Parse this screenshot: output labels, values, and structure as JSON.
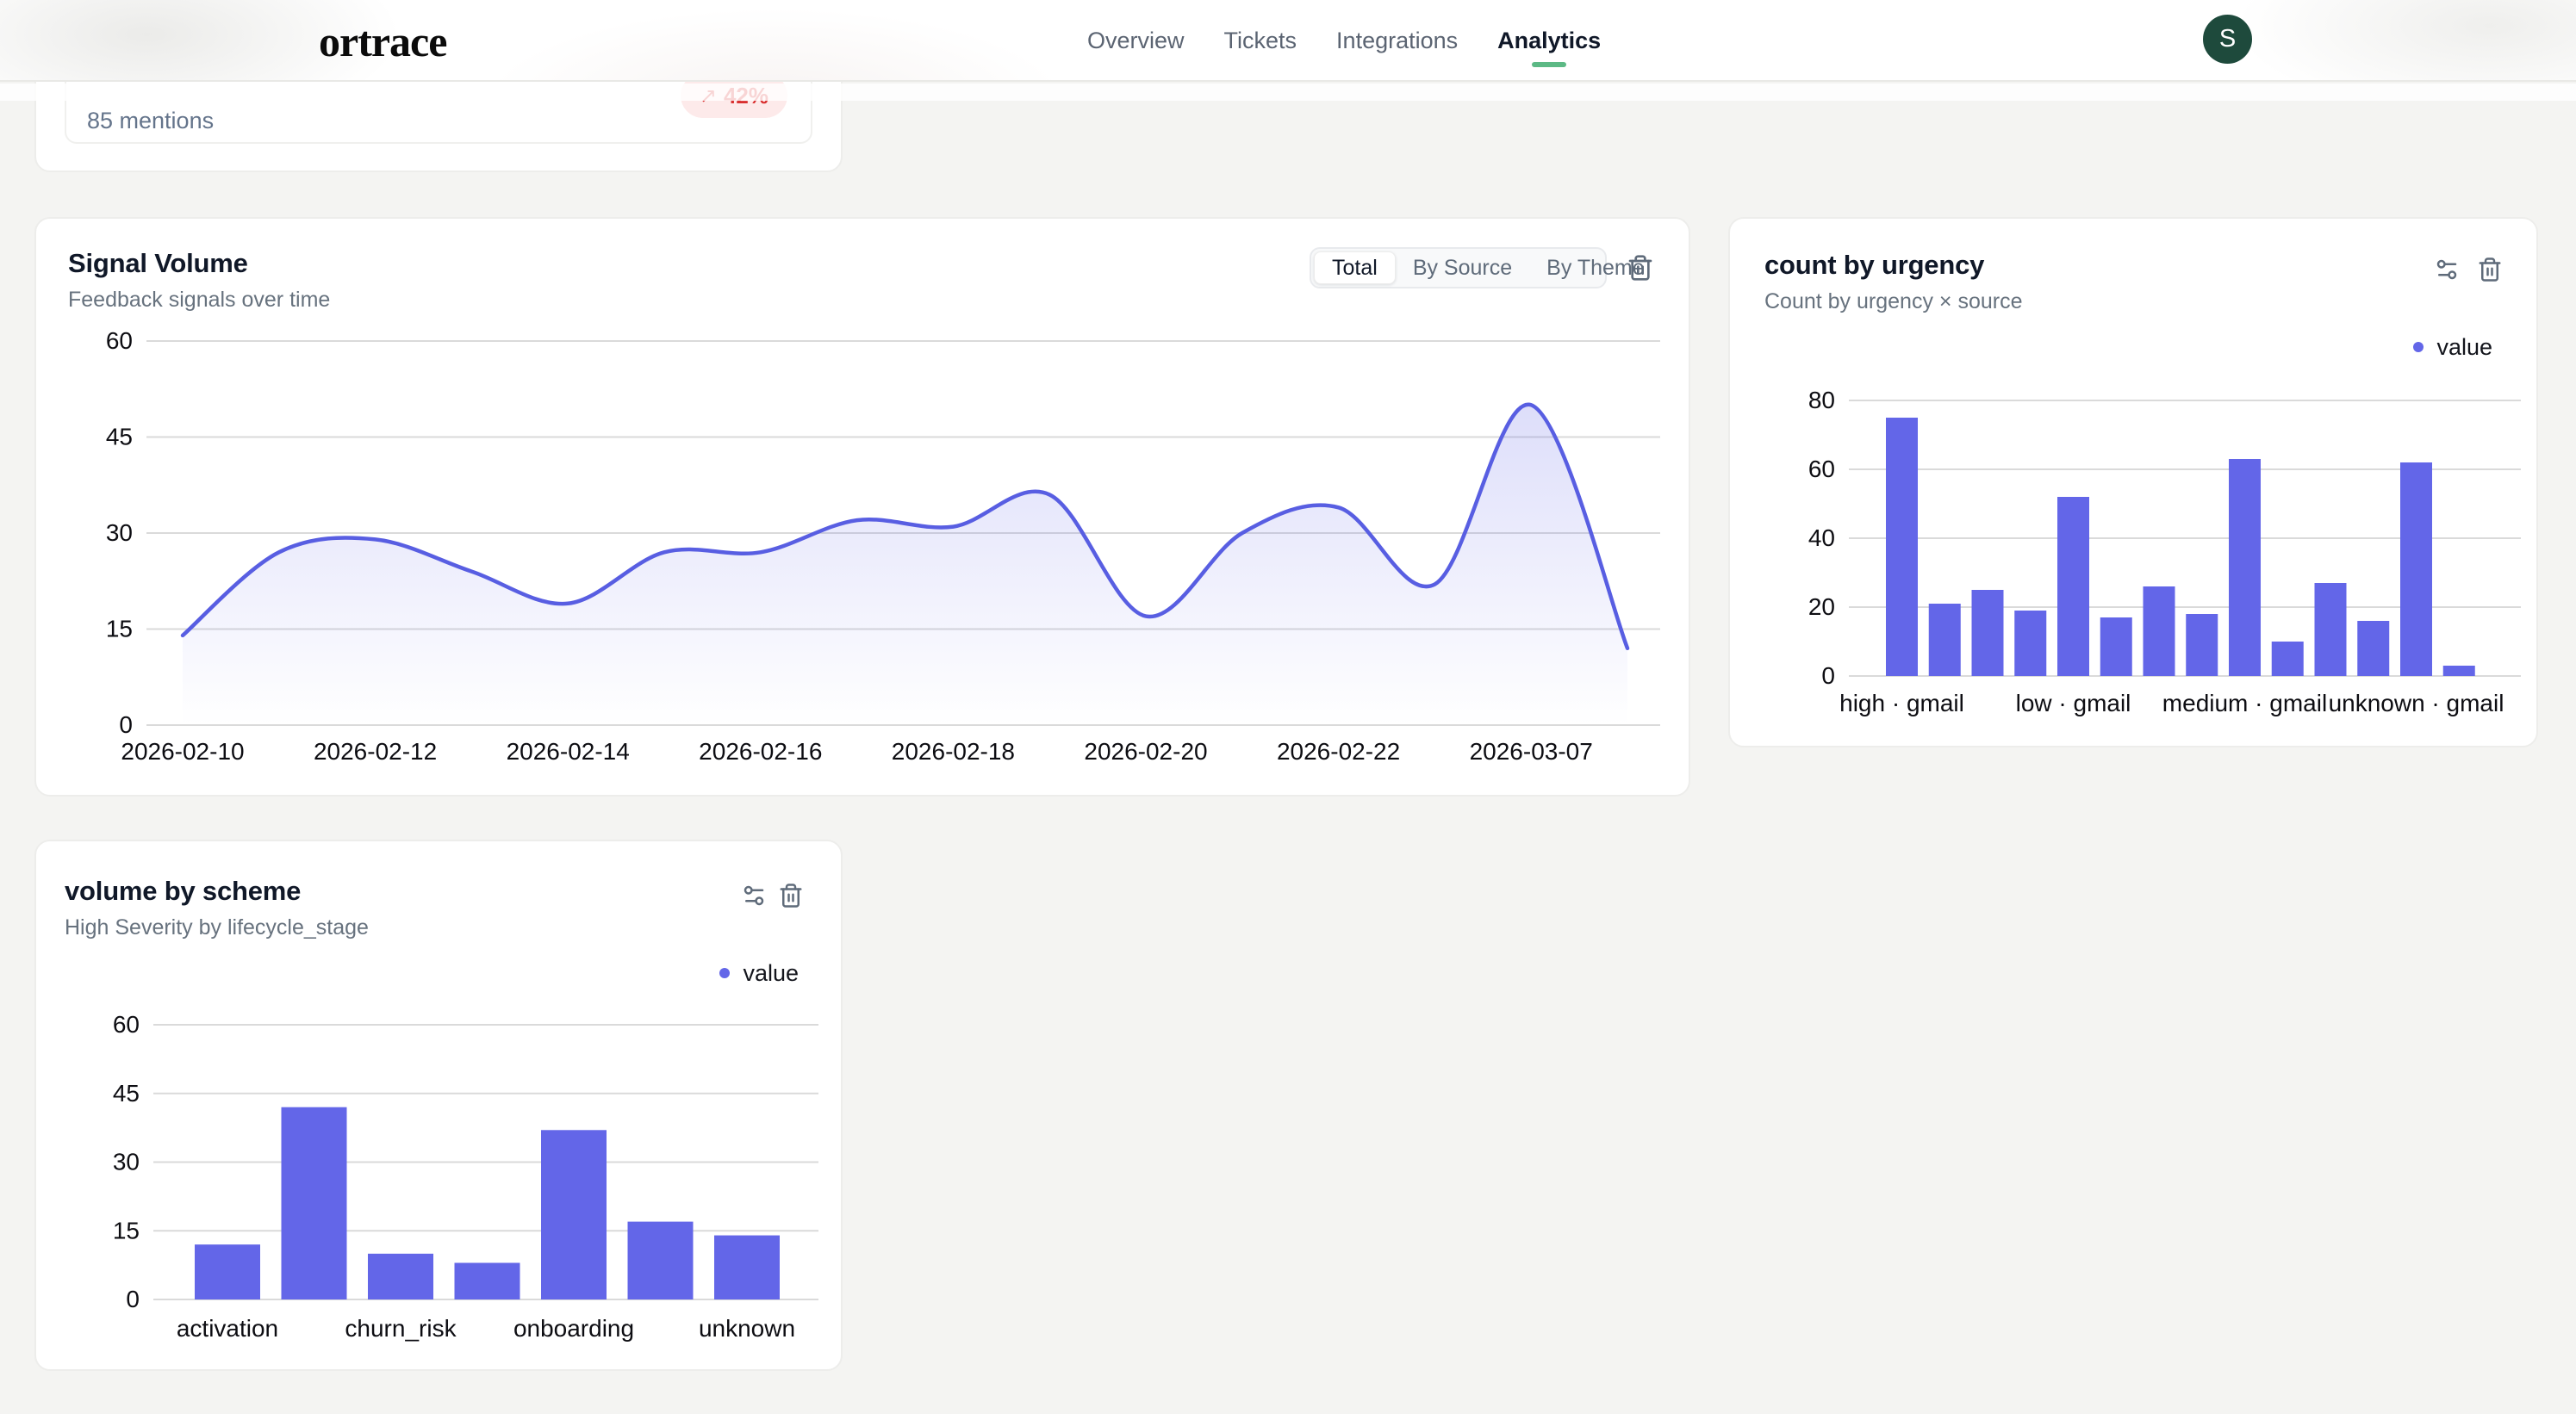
{
  "header": {
    "logo": "ortrace",
    "nav": [
      {
        "label": "Overview",
        "active": false
      },
      {
        "label": "Tickets",
        "active": false
      },
      {
        "label": "Integrations",
        "active": false
      },
      {
        "label": "Analytics",
        "active": true
      }
    ],
    "avatar_initial": "S"
  },
  "colors": {
    "accent": "#6366e8",
    "line": "#585ee2",
    "grid": "#dadada",
    "tick_text": "#0d0d12",
    "green_underline": "#5cb985",
    "avatar_bg": "#1e4a3c",
    "badge_bg": "#fdeaea",
    "badge_text": "#d93030"
  },
  "cards": {
    "metric": {
      "label": "85 mentions",
      "badge": {
        "icon": "trending-up-icon",
        "icon_glyph": "↗",
        "label": "42%"
      }
    },
    "signal_volume": {
      "title": "Signal Volume",
      "subtitle": "Feedback signals over time",
      "toggles": [
        "Total",
        "By Source",
        "By Theme"
      ],
      "active_toggle": "Total"
    },
    "count_by_urgency": {
      "title": "count by urgency",
      "subtitle": "Count by urgency × source",
      "legend": "value"
    },
    "volume_by_scheme": {
      "title": "volume by scheme",
      "subtitle": "High Severity by lifecycle_stage",
      "legend": "value"
    }
  },
  "chart_data": [
    {
      "id": "signal_volume",
      "type": "area",
      "title": "Signal Volume",
      "subtitle": "Feedback signals over time",
      "x_ticks": [
        "2026-02-10",
        "2026-02-12",
        "2026-02-14",
        "2026-02-16",
        "2026-02-18",
        "2026-02-20",
        "2026-02-22",
        "2026-03-07"
      ],
      "points_per_tick": 2,
      "values": [
        14,
        27,
        29,
        24,
        19,
        27,
        27,
        32,
        31,
        36,
        17,
        30,
        34,
        22,
        50,
        12
      ],
      "ylim": [
        0,
        60
      ],
      "yticks": [
        0,
        15,
        30,
        45,
        60
      ],
      "grid": true,
      "legend": null
    },
    {
      "id": "count_by_urgency",
      "type": "bar",
      "title": "count by urgency",
      "subtitle": "Count by urgency × source",
      "legend": "value",
      "x_tick_labels": {
        "0": "high · gmail",
        "4": "low · gmail",
        "8": "medium · gmail",
        "12": "unknown · gmail"
      },
      "values": [
        75,
        21,
        25,
        19,
        52,
        17,
        26,
        18,
        63,
        10,
        27,
        16,
        62,
        3
      ],
      "ylim": [
        0,
        80
      ],
      "yticks": [
        0,
        20,
        40,
        60,
        80
      ],
      "grid": true
    },
    {
      "id": "volume_by_scheme",
      "type": "bar",
      "title": "volume by scheme",
      "subtitle": "High Severity by lifecycle_stage",
      "legend": "value",
      "x_tick_labels": {
        "0": "activation",
        "2": "churn_risk",
        "4": "onboarding",
        "6": "unknown"
      },
      "values": [
        12,
        42,
        10,
        8,
        37,
        17,
        14
      ],
      "ylim": [
        0,
        60
      ],
      "yticks": [
        0,
        15,
        30,
        45,
        60
      ],
      "grid": true
    }
  ]
}
